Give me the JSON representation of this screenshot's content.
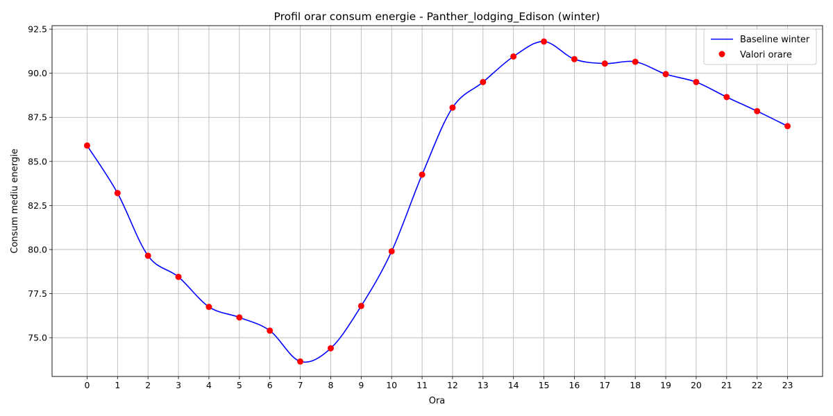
{
  "chart_data": {
    "type": "line",
    "title": "Profil orar consum energie - Panther_lodging_Edison (winter)",
    "xlabel": "Ora",
    "ylabel": "Consum mediu energie",
    "x": [
      0,
      1,
      2,
      3,
      4,
      5,
      6,
      7,
      8,
      9,
      10,
      11,
      12,
      13,
      14,
      15,
      16,
      17,
      18,
      19,
      20,
      21,
      22,
      23
    ],
    "x_tick_labels": [
      "0",
      "1",
      "2",
      "3",
      "4",
      "5",
      "6",
      "7",
      "8",
      "9",
      "10",
      "11",
      "12",
      "13",
      "14",
      "15",
      "16",
      "17",
      "18",
      "19",
      "20",
      "21",
      "22",
      "23"
    ],
    "y_ticks": [
      75.0,
      77.5,
      80.0,
      82.5,
      85.0,
      87.5,
      90.0,
      92.5
    ],
    "y_tick_labels": [
      "75.0",
      "77.5",
      "80.0",
      "82.5",
      "85.0",
      "87.5",
      "90.0",
      "92.5"
    ],
    "xlim": [
      -1.15,
      24.15
    ],
    "ylim": [
      72.8,
      92.7
    ],
    "grid": true,
    "legend_position": "top-right",
    "series": [
      {
        "name": "Baseline winter",
        "kind": "smooth-line",
        "color": "#0000ff",
        "values": [
          85.9,
          83.2,
          79.65,
          78.45,
          76.75,
          76.15,
          75.4,
          73.65,
          74.4,
          76.8,
          79.9,
          84.25,
          88.05,
          89.5,
          90.95,
          91.8,
          90.8,
          90.55,
          90.65,
          89.95,
          89.5,
          88.65,
          87.85,
          87.0
        ]
      },
      {
        "name": "Valori orare",
        "kind": "scatter",
        "color": "#ff0000",
        "values": [
          85.9,
          83.2,
          79.65,
          78.45,
          76.75,
          76.15,
          75.4,
          73.65,
          74.4,
          76.8,
          79.9,
          84.25,
          88.05,
          89.5,
          90.95,
          91.8,
          90.8,
          90.55,
          90.65,
          89.95,
          89.5,
          88.65,
          87.85,
          87.0
        ]
      }
    ]
  }
}
